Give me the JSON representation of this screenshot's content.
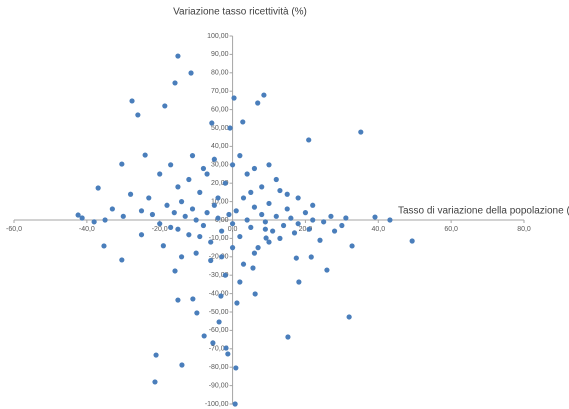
{
  "chart_data": {
    "type": "scatter",
    "y_label": "Variazione tasso ricettività (%)",
    "x_label": "Tasso di variazione della popolazione (%)",
    "color": "#4a7ebb",
    "xlim": [
      -60,
      80
    ],
    "ylim": [
      -100,
      100
    ],
    "xticks": [
      {
        "value": -60,
        "label": "-60,0"
      },
      {
        "value": -40,
        "label": "-40,0"
      },
      {
        "value": -20,
        "label": "-20,0"
      },
      {
        "value": 0,
        "label": "0,0"
      },
      {
        "value": 20,
        "label": "20,0"
      },
      {
        "value": 40,
        "label": "40,0"
      },
      {
        "value": 60,
        "label": "60,0"
      },
      {
        "value": 80,
        "label": "80,0"
      }
    ],
    "yticks": [
      {
        "value": 100,
        "label": "100,00"
      },
      {
        "value": 90,
        "label": "90,00"
      },
      {
        "value": 80,
        "label": "80,00"
      },
      {
        "value": 70,
        "label": "70,00"
      },
      {
        "value": 60,
        "label": "60,00"
      },
      {
        "value": 50,
        "label": "50,00"
      },
      {
        "value": 40,
        "label": "40,00"
      },
      {
        "value": 30,
        "label": "30,00"
      },
      {
        "value": 20,
        "label": "20,00"
      },
      {
        "value": 10,
        "label": "10,00"
      },
      {
        "value": 0,
        "label": "0,00"
      },
      {
        "value": -10,
        "label": "-10,00"
      },
      {
        "value": -20,
        "label": "-20,00"
      },
      {
        "value": -30,
        "label": "-30,00"
      },
      {
        "value": -40,
        "label": "-40,00"
      },
      {
        "value": -50,
        "label": "-50,00"
      },
      {
        "value": -60,
        "label": "-60,00"
      },
      {
        "value": -70,
        "label": "-70,00"
      },
      {
        "value": -80,
        "label": "-80,00"
      },
      {
        "value": -90,
        "label": "-90,00"
      },
      {
        "value": -100,
        "label": "-100,00"
      }
    ],
    "x": [
      -15.0,
      -11.4,
      -15.8,
      -27.6,
      -26.0,
      0.4,
      8.6,
      6.9,
      -18.6,
      35.2,
      20.9,
      -5.7,
      -0.7,
      2.8,
      -30.4,
      -36.9,
      -24.0,
      31.1,
      39.1,
      43.2,
      49.3,
      32.8,
      -42.4,
      -41.3,
      -35.3,
      -30.4,
      -15.8,
      -15.0,
      -21.0,
      -13.9,
      -21.3,
      -5.4,
      -1.8,
      -1.3,
      0.9,
      0.7,
      1.2,
      -10.9,
      -3.7,
      -9.8,
      15.2,
      32.0,
      18.2,
      25.9,
      17.5,
      5.6,
      9.2,
      21.6,
      -7.8,
      2.0,
      -3.2,
      6.2,
      -25,
      -22,
      -20,
      -18,
      -16,
      -15,
      -14,
      -13,
      -12,
      -11,
      -10,
      -9,
      -8,
      -7,
      -6,
      -5,
      -4,
      -3,
      -2,
      -1,
      0,
      1,
      2,
      3,
      4,
      5,
      6,
      7,
      8,
      9,
      10,
      11,
      12,
      14,
      15,
      16,
      18,
      20,
      22,
      25,
      27,
      30,
      -20,
      -17,
      -12,
      -8,
      -5,
      0,
      4,
      8,
      12,
      15,
      18,
      22,
      -28,
      -25,
      -30,
      -33,
      -35,
      -38,
      -10,
      -6,
      -3,
      0,
      3,
      6,
      10,
      13,
      17,
      -15,
      -7,
      2,
      6,
      10,
      -2,
      -19,
      24,
      -23,
      -14,
      5,
      -4,
      -9,
      9,
      13,
      -11,
      -17,
      21,
      28
    ],
    "y": [
      89.1,
      79.9,
      74.5,
      64.7,
      57.1,
      66.3,
      67.9,
      63.6,
      62.0,
      47.8,
      43.5,
      52.7,
      50.0,
      53.3,
      30.4,
      17.4,
      35.3,
      1.1,
      1.6,
      0,
      -11.4,
      -14.1,
      2.7,
      1.1,
      -14.1,
      -21.7,
      -27.7,
      -43.5,
      -73.4,
      -78.8,
      -88.0,
      -66.8,
      -69.6,
      -72.8,
      -80.4,
      -100,
      -45.1,
      -42.9,
      -55.4,
      -50.5,
      -63.6,
      -52.7,
      -33.7,
      -27.2,
      -20.7,
      -26.1,
      -9.8,
      -20.1,
      -63.0,
      -33.7,
      -41.3,
      -40.2,
      5,
      3,
      -2,
      8,
      4,
      -5,
      10,
      2,
      -8,
      6,
      0,
      15,
      -3,
      4,
      -12,
      8,
      1,
      -6,
      20,
      3,
      -2,
      5,
      -9,
      12,
      0,
      -4,
      7,
      -15,
      3,
      -1,
      9,
      -6,
      2,
      -3,
      6,
      1,
      -2,
      4,
      0,
      -1,
      2,
      -3,
      25,
      30,
      22,
      28,
      33,
      30,
      25,
      18,
      22,
      14,
      12,
      8,
      14,
      -8,
      2,
      6,
      0,
      -1,
      -18,
      -22,
      -20,
      -15,
      -24,
      -18,
      -12,
      -10,
      -7,
      18,
      25,
      35,
      28,
      30,
      -30,
      -14,
      -11,
      12,
      -20,
      15,
      12,
      -9,
      -5,
      16,
      35,
      -4,
      -5,
      -6
    ]
  }
}
